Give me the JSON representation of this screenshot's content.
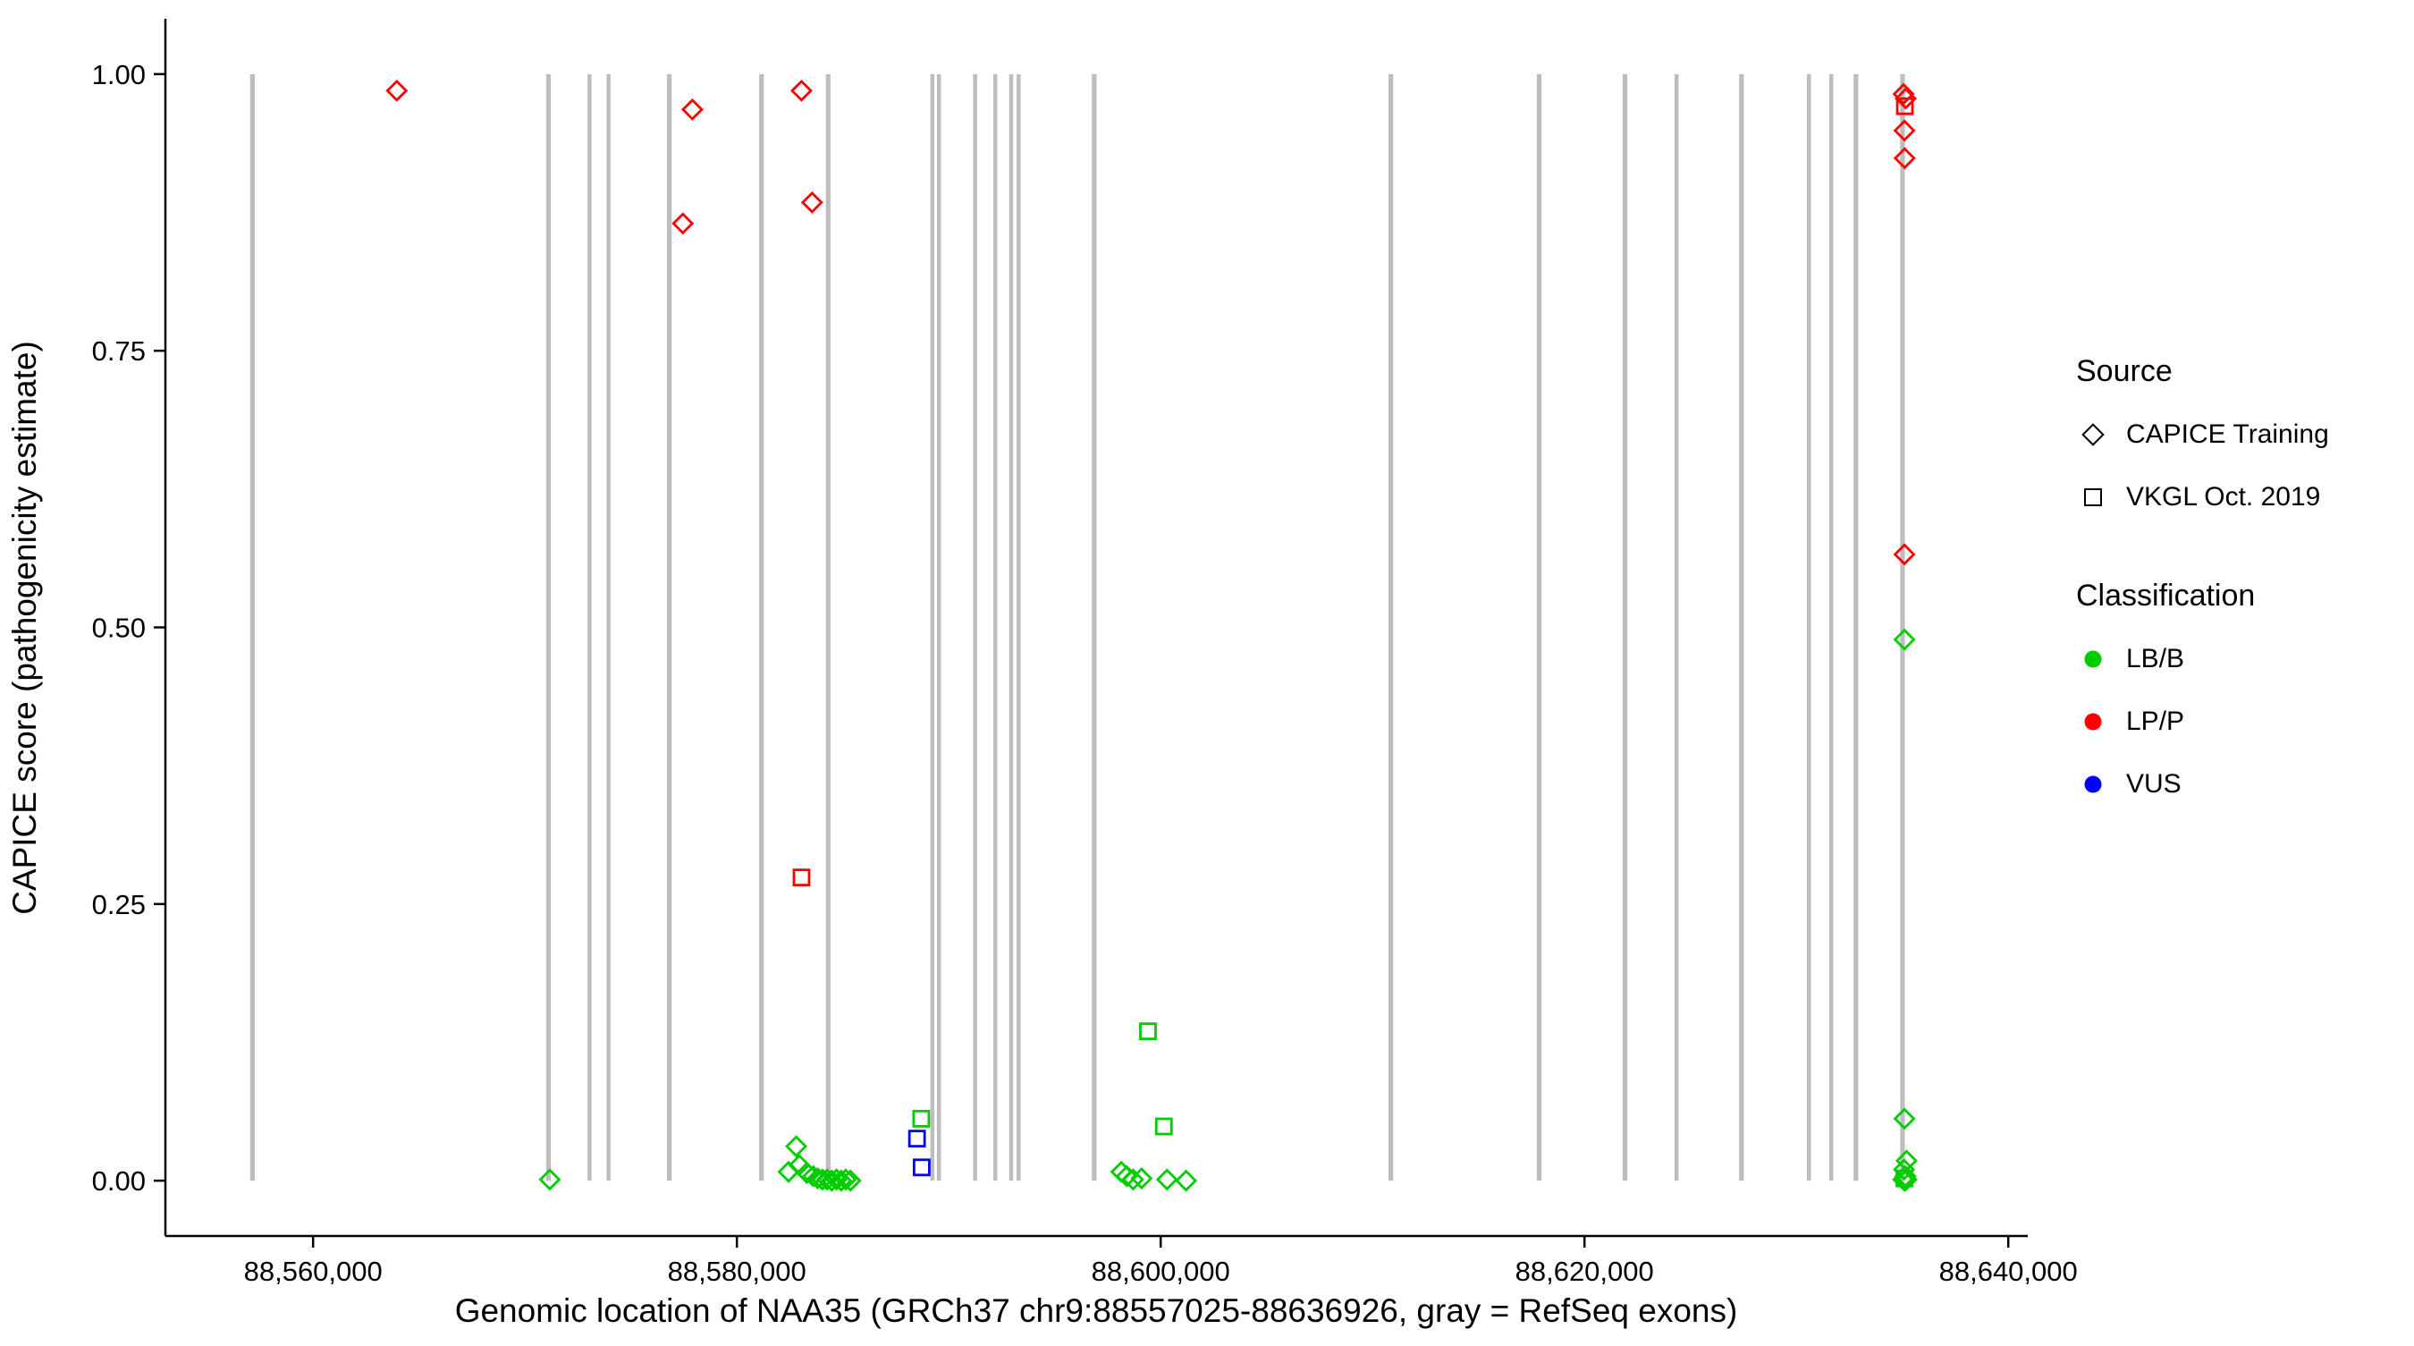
{
  "chart_data": {
    "type": "scatter",
    "title": "",
    "xlabel": "Genomic location of NAA35 (GRCh37 chr9:88557025-88636926, gray = RefSeq exons)",
    "ylabel": "CAPICE score (pathogenicity estimate)",
    "xlim": [
      88553030,
      88640920
    ],
    "ylim": [
      -0.05,
      1.05
    ],
    "grid": "off",
    "background": "#ffffff",
    "axis_color": "#000000",
    "exon_color": "#bdbdbd",
    "x_ticks": [
      {
        "value": 88560000,
        "label": "88,560,000"
      },
      {
        "value": 88580000,
        "label": "88,580,000"
      },
      {
        "value": 88600000,
        "label": "88,600,000"
      },
      {
        "value": 88620000,
        "label": "88,620,000"
      },
      {
        "value": 88640000,
        "label": "88,640,000"
      }
    ],
    "y_ticks": [
      {
        "value": 0.0,
        "label": "0.00"
      },
      {
        "value": 0.25,
        "label": "0.25"
      },
      {
        "value": 0.5,
        "label": "0.50"
      },
      {
        "value": 0.75,
        "label": "0.75"
      },
      {
        "value": 1.0,
        "label": "1.00"
      }
    ],
    "exons": [
      {
        "start": 88557025,
        "end": 88557250
      },
      {
        "start": 88571000,
        "end": 88571220
      },
      {
        "start": 88572950,
        "end": 88573100
      },
      {
        "start": 88573850,
        "end": 88574010
      },
      {
        "start": 88576700,
        "end": 88576920
      },
      {
        "start": 88581050,
        "end": 88581270
      },
      {
        "start": 88584200,
        "end": 88584420
      },
      {
        "start": 88589130,
        "end": 88589290
      },
      {
        "start": 88589440,
        "end": 88589600
      },
      {
        "start": 88591150,
        "end": 88591310
      },
      {
        "start": 88592100,
        "end": 88592260
      },
      {
        "start": 88592850,
        "end": 88593010
      },
      {
        "start": 88593200,
        "end": 88593360
      },
      {
        "start": 88596750,
        "end": 88596970
      },
      {
        "start": 88610750,
        "end": 88610970
      },
      {
        "start": 88617750,
        "end": 88617970
      },
      {
        "start": 88621800,
        "end": 88622020
      },
      {
        "start": 88624250,
        "end": 88624420
      },
      {
        "start": 88627300,
        "end": 88627520
      },
      {
        "start": 88630500,
        "end": 88630660
      },
      {
        "start": 88631550,
        "end": 88631710
      },
      {
        "start": 88632700,
        "end": 88632920
      },
      {
        "start": 88634900,
        "end": 88635120
      }
    ],
    "series": [
      {
        "name": "LP/P - CAPICE Training",
        "source": "CAPICE Training",
        "classification": "LP/P",
        "shape": "diamond",
        "color": "#ff0000",
        "points": [
          [
            88563950,
            0.985
          ],
          [
            88577450,
            0.865
          ],
          [
            88577900,
            0.968
          ],
          [
            88583050,
            0.985
          ],
          [
            88583550,
            0.884
          ],
          [
            88635060,
            0.982
          ],
          [
            88635160,
            0.978
          ],
          [
            88635100,
            0.949
          ],
          [
            88635110,
            0.924
          ],
          [
            88635100,
            0.566
          ]
        ]
      },
      {
        "name": "LP/P - VKGL Oct. 2019",
        "source": "VKGL Oct. 2019",
        "classification": "LP/P",
        "shape": "square",
        "color": "#ff0000",
        "points": [
          [
            88583050,
            0.274
          ],
          [
            88635120,
            0.971
          ]
        ]
      },
      {
        "name": "LB/B - CAPICE Training",
        "source": "CAPICE Training",
        "classification": "LB/B",
        "shape": "diamond",
        "color": "#00cc00",
        "points": [
          [
            88571170,
            0.001
          ],
          [
            88582440,
            0.008
          ],
          [
            88582800,
            0.031
          ],
          [
            88582950,
            0.014
          ],
          [
            88583300,
            0.007
          ],
          [
            88583600,
            0.004
          ],
          [
            88583820,
            0.002
          ],
          [
            88584040,
            0.001
          ],
          [
            88584260,
            0.001
          ],
          [
            88584480,
            0.0
          ],
          [
            88584700,
            0.001
          ],
          [
            88584920,
            0.0
          ],
          [
            88585140,
            0.001
          ],
          [
            88585360,
            0.0
          ],
          [
            88598140,
            0.008
          ],
          [
            88598400,
            0.004
          ],
          [
            88598700,
            0.001
          ],
          [
            88599100,
            0.002
          ],
          [
            88600300,
            0.001
          ],
          [
            88601200,
            0.0
          ],
          [
            88635100,
            0.489
          ],
          [
            88635100,
            0.056
          ],
          [
            88635200,
            0.018
          ],
          [
            88635080,
            0.01
          ],
          [
            88635150,
            0.004
          ],
          [
            88635040,
            0.001
          ],
          [
            88635200,
            0.001
          ],
          [
            88635120,
            0.0
          ]
        ]
      },
      {
        "name": "LB/B - VKGL Oct. 2019",
        "source": "VKGL Oct. 2019",
        "classification": "LB/B",
        "shape": "square",
        "color": "#00cc00",
        "points": [
          [
            88588700,
            0.056
          ],
          [
            88599400,
            0.135
          ],
          [
            88600150,
            0.049
          ],
          [
            88635100,
            0.002
          ]
        ]
      },
      {
        "name": "VUS - VKGL Oct. 2019",
        "source": "VKGL Oct. 2019",
        "classification": "VUS",
        "shape": "square",
        "color": "#0000ff",
        "points": [
          [
            88588500,
            0.038
          ],
          [
            88588720,
            0.012
          ]
        ]
      }
    ],
    "legend": {
      "position": "right",
      "source": {
        "title": "Source",
        "items": [
          {
            "label": "CAPICE Training",
            "shape": "diamond"
          },
          {
            "label": "VKGL Oct. 2019",
            "shape": "square"
          }
        ]
      },
      "classification": {
        "title": "Classification",
        "items": [
          {
            "label": "LB/B",
            "color": "#00cc00"
          },
          {
            "label": "LP/P",
            "color": "#ff0000"
          },
          {
            "label": "VUS",
            "color": "#0000ff"
          }
        ]
      }
    }
  }
}
